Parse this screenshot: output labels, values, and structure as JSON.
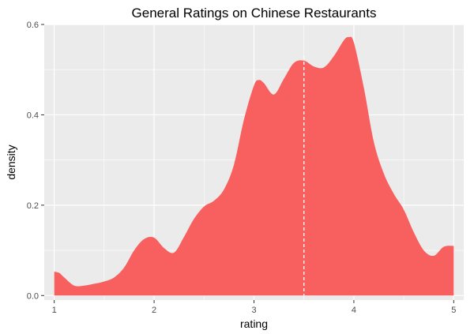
{
  "chart_data": {
    "type": "area",
    "title": "General Ratings on Chinese Restaurants",
    "xlabel": "rating",
    "ylabel": "density",
    "xlim": [
      0.9,
      5.1
    ],
    "ylim": [
      -0.01,
      0.6
    ],
    "xticks": [
      1,
      2,
      3,
      4,
      5
    ],
    "xtick_labels": [
      "1",
      "2",
      "3",
      "4",
      "5"
    ],
    "yticks": [
      0.0,
      0.2,
      0.4,
      0.6
    ],
    "ytick_labels": [
      "0.0",
      "0.2",
      "0.4",
      "0.6"
    ],
    "grid": true,
    "legend": "none",
    "series": [
      {
        "x": [
          1.0,
          1.05,
          1.1,
          1.2,
          1.3,
          1.4,
          1.5,
          1.6,
          1.7,
          1.8,
          1.9,
          2.0,
          2.1,
          2.2,
          2.3,
          2.4,
          2.5,
          2.6,
          2.7,
          2.8,
          2.9,
          3.0,
          3.05,
          3.1,
          3.2,
          3.3,
          3.4,
          3.5,
          3.6,
          3.7,
          3.8,
          3.9,
          3.95,
          4.0,
          4.1,
          4.2,
          4.3,
          4.4,
          4.5,
          4.6,
          4.7,
          4.8,
          4.9,
          5.0
        ],
        "y": [
          0.053,
          0.05,
          0.04,
          0.022,
          0.022,
          0.026,
          0.031,
          0.04,
          0.062,
          0.1,
          0.125,
          0.128,
          0.105,
          0.095,
          0.13,
          0.17,
          0.197,
          0.21,
          0.235,
          0.29,
          0.39,
          0.465,
          0.477,
          0.47,
          0.445,
          0.48,
          0.515,
          0.52,
          0.507,
          0.505,
          0.53,
          0.565,
          0.572,
          0.56,
          0.46,
          0.34,
          0.27,
          0.225,
          0.19,
          0.14,
          0.1,
          0.088,
          0.108,
          0.11
        ]
      }
    ],
    "reference_line": {
      "x": 3.5
    },
    "colors": {
      "fill": "#f8605f",
      "panel": "#ebebeb",
      "grid": "#ffffff",
      "reference_line": "#ffffff"
    }
  }
}
